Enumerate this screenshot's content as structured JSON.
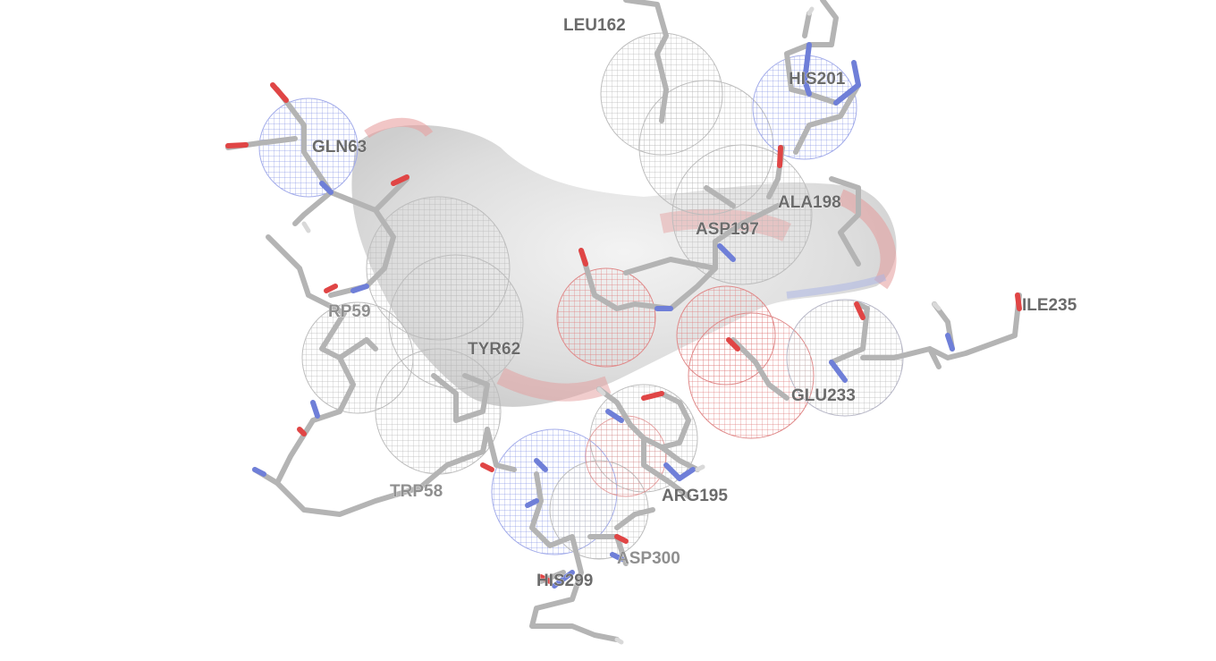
{
  "viewer": {
    "background": "#ffffff",
    "colors": {
      "carbon": "#b4b4b4",
      "nitrogen": "#6f7fd8",
      "oxygen": "#e04545",
      "hydrogen": "#d8d8d8",
      "surface": "#dcdcdc"
    }
  },
  "residue_labels": [
    {
      "id": "leu162",
      "text": "LEU162"
    },
    {
      "id": "his201",
      "text": "HIS201"
    },
    {
      "id": "gln63",
      "text": "GLN63"
    },
    {
      "id": "ala198",
      "text": "ALA198"
    },
    {
      "id": "asp197",
      "text": "ASP197"
    },
    {
      "id": "ile235",
      "text": "ILE235"
    },
    {
      "id": "trp59",
      "text": "RP59"
    },
    {
      "id": "tyr62",
      "text": "TYR62"
    },
    {
      "id": "glu233",
      "text": "GLU233"
    },
    {
      "id": "arg195",
      "text": "ARG195"
    },
    {
      "id": "trp58",
      "text": "TRP58"
    },
    {
      "id": "asp300",
      "text": "ASP300"
    },
    {
      "id": "his299",
      "text": "HIS299"
    }
  ]
}
